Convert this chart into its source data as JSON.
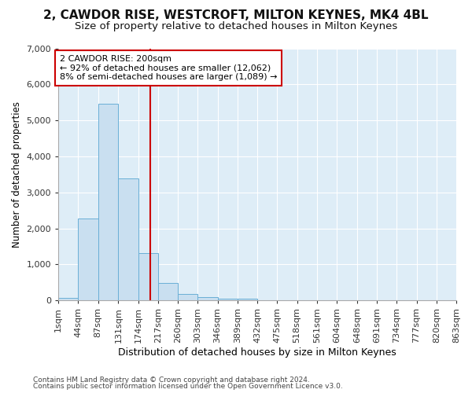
{
  "title1": "2, CAWDOR RISE, WESTCROFT, MILTON KEYNES, MK4 4BL",
  "title2": "Size of property relative to detached houses in Milton Keynes",
  "xlabel": "Distribution of detached houses by size in Milton Keynes",
  "ylabel": "Number of detached properties",
  "annotation_title": "2 CAWDOR RISE: 200sqm",
  "annotation_line1": "← 92% of detached houses are smaller (12,062)",
  "annotation_line2": "8% of semi-detached houses are larger (1,089) →",
  "footer1": "Contains HM Land Registry data © Crown copyright and database right 2024.",
  "footer2": "Contains public sector information licensed under the Open Government Licence v3.0.",
  "bar_color": "#c9dff0",
  "bar_edge_color": "#6aafd6",
  "ref_line_x": 200,
  "ref_line_color": "#cc0000",
  "bin_edges": [
    1,
    44,
    87,
    131,
    174,
    217,
    260,
    303,
    346,
    389,
    432,
    475,
    518,
    561,
    604,
    648,
    691,
    734,
    777,
    820,
    863
  ],
  "bar_heights": [
    75,
    2280,
    5460,
    3380,
    1310,
    490,
    185,
    95,
    55,
    50,
    0,
    0,
    0,
    0,
    0,
    0,
    0,
    0,
    0,
    0
  ],
  "ylim": [
    0,
    7000
  ],
  "yticks": [
    0,
    1000,
    2000,
    3000,
    4000,
    5000,
    6000,
    7000
  ],
  "bg_color": "#deedf7",
  "fig_bg_color": "#ffffff",
  "title1_fontsize": 11,
  "title2_fontsize": 9.5,
  "xlabel_fontsize": 9,
  "ylabel_fontsize": 8.5,
  "tick_fontsize": 8,
  "annotation_fontsize": 8,
  "footer_fontsize": 6.5
}
